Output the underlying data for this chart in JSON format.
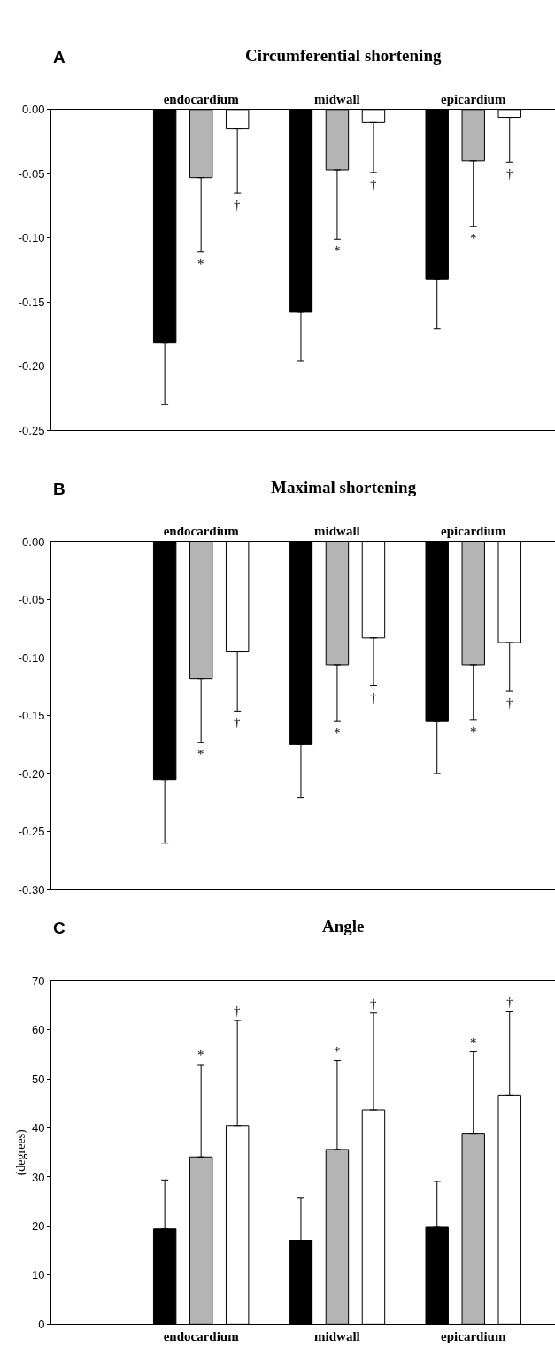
{
  "chart_data": [
    {
      "type": "bar",
      "title": "Circumferential shortening",
      "categories": [
        "endocardium",
        "midwall",
        "epicardium"
      ],
      "ylim": [
        -0.25,
        0
      ],
      "yticks": [
        {
          "value": 0,
          "label": "0.00"
        },
        {
          "value": -0.05,
          "label": "-0.05"
        },
        {
          "value": -0.1,
          "label": "-0.10"
        },
        {
          "value": -0.15,
          "label": "-0.15"
        },
        {
          "value": -0.2,
          "label": "-0.20"
        },
        {
          "value": -0.25,
          "label": "-0.25"
        }
      ],
      "annotations": [
        "A",
        "*",
        "*",
        "*",
        "†",
        "†",
        "†"
      ],
      "series": [
        {
          "color": "#000000",
          "values": [
            -0.182,
            -0.158,
            -0.132
          ],
          "errors": [
            [
              -0.23,
              -0.182
            ],
            [
              -0.196,
              -0.158
            ],
            [
              -0.171,
              -0.132
            ]
          ]
        },
        {
          "color": "#b4b4b4",
          "values": [
            -0.053,
            -0.047,
            -0.04
          ],
          "errors": [
            [
              -0.111,
              -0.053
            ],
            [
              -0.101,
              -0.047
            ],
            [
              -0.091,
              -0.04
            ]
          ]
        },
        {
          "color": "#ffffff",
          "values": [
            -0.015,
            -0.01,
            -0.006
          ],
          "errors": [
            [
              -0.065,
              -0.015
            ],
            [
              -0.049,
              -0.01
            ],
            [
              -0.041,
              -0.006
            ]
          ]
        }
      ]
    },
    {
      "type": "bar",
      "title": "Maximal shortening",
      "categories": [
        "endocardium",
        "midwall",
        "epicardium"
      ],
      "ylim": [
        -0.3,
        0
      ],
      "yticks": [
        {
          "value": 0,
          "label": "0.00"
        },
        {
          "value": -0.05,
          "label": "-0.05"
        },
        {
          "value": -0.1,
          "label": "-0.10"
        },
        {
          "value": -0.15,
          "label": "-0.15"
        },
        {
          "value": -0.2,
          "label": "-0.20"
        },
        {
          "value": -0.25,
          "label": "-0.25"
        },
        {
          "value": -0.3,
          "label": "-0.30"
        }
      ],
      "annotations": [
        "B",
        "*",
        "*",
        "*",
        "†",
        "†",
        "†"
      ],
      "series": [
        {
          "color": "#000000",
          "values": [
            -0.205,
            -0.175,
            -0.155
          ],
          "errors": [
            [
              -0.26,
              -0.205
            ],
            [
              -0.221,
              -0.175
            ],
            [
              -0.2,
              -0.155
            ]
          ]
        },
        {
          "color": "#b4b4b4",
          "values": [
            -0.118,
            -0.106,
            -0.106
          ],
          "errors": [
            [
              -0.173,
              -0.118
            ],
            [
              -0.155,
              -0.106
            ],
            [
              -0.154,
              -0.106
            ]
          ]
        },
        {
          "color": "#ffffff",
          "values": [
            -0.095,
            -0.083,
            -0.087
          ],
          "errors": [
            [
              -0.146,
              -0.095
            ],
            [
              -0.124,
              -0.083
            ],
            [
              -0.129,
              -0.087
            ]
          ]
        }
      ]
    },
    {
      "type": "bar",
      "title": "Angle",
      "ylabel": "(degrees)",
      "categories": [
        "endocardium",
        "midwall",
        "epicardium"
      ],
      "ylim": [
        0,
        70
      ],
      "yticks": [
        0,
        10,
        20,
        30,
        40,
        50,
        60,
        70
      ],
      "annotations": [
        "C",
        "*",
        "*",
        "*",
        "†",
        "†",
        "†"
      ],
      "series": [
        {
          "color": "#000000",
          "values": [
            19.4,
            17.1,
            19.9
          ],
          "errors": [
            [
              19.4,
              29.4
            ],
            [
              17.1,
              25.7
            ],
            [
              19.9,
              29.1
            ]
          ]
        },
        {
          "color": "#b4b4b4",
          "values": [
            34.1,
            35.6,
            38.9
          ],
          "errors": [
            [
              34.1,
              52.9
            ],
            [
              35.6,
              53.7
            ],
            [
              38.9,
              55.5
            ]
          ]
        },
        {
          "color": "#ffffff",
          "values": [
            40.5,
            43.7,
            46.7
          ],
          "errors": [
            [
              40.5,
              61.9
            ],
            [
              43.7,
              63.4
            ],
            [
              46.7,
              63.8
            ]
          ]
        }
      ]
    }
  ]
}
